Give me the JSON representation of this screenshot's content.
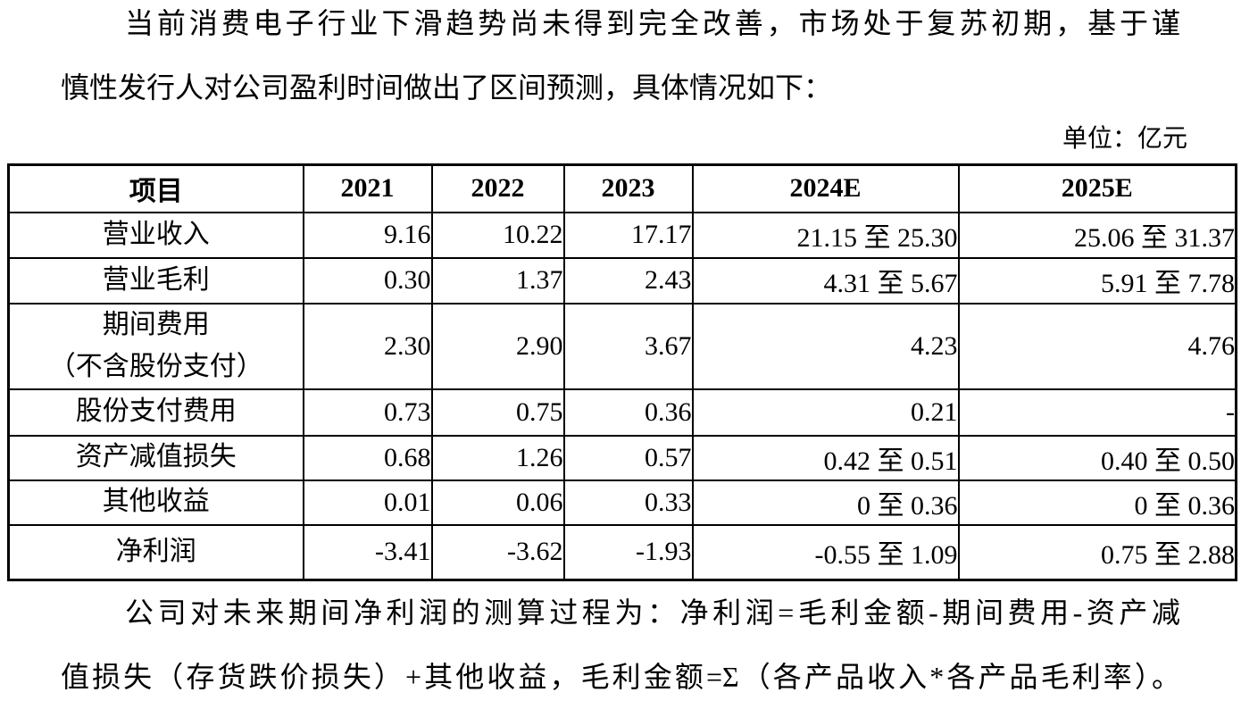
{
  "page": {
    "background": "#ffffff",
    "text_color": "#000000",
    "border_color": "#000000"
  },
  "intro": {
    "line1": "当前消费电子行业下滑趋势尚未得到完全改善，市场处于复苏初期，基于谨",
    "line2": "慎性发行人对公司盈利时间做出了区间预测，具体情况如下："
  },
  "unit_label": "单位：亿元",
  "table": {
    "headers": [
      "项目",
      "2021",
      "2022",
      "2023",
      "2024E",
      "2025E"
    ],
    "rows": [
      {
        "label": "营业收入",
        "values": [
          "9.16",
          "10.22",
          "17.17",
          "21.15 至 25.30",
          "25.06 至 31.37"
        ]
      },
      {
        "label": "营业毛利",
        "values": [
          "0.30",
          "1.37",
          "2.43",
          "4.31 至 5.67",
          "5.91 至 7.78"
        ]
      },
      {
        "label": "期间费用\n（不含股份支付）",
        "values": [
          "2.30",
          "2.90",
          "3.67",
          "4.23",
          "4.76"
        ]
      },
      {
        "label": "股份支付费用",
        "values": [
          "0.73",
          "0.75",
          "0.36",
          "0.21",
          "-"
        ]
      },
      {
        "label": "资产减值损失",
        "values": [
          "0.68",
          "1.26",
          "0.57",
          "0.42 至 0.51",
          "0.40 至 0.50"
        ]
      },
      {
        "label": "其他收益",
        "values": [
          "0.01",
          "0.06",
          "0.33",
          "0 至 0.36",
          "0 至 0.36"
        ]
      },
      {
        "label": "净利润",
        "values": [
          "-3.41",
          "-3.62",
          "-1.93",
          "-0.55 至 1.09",
          "0.75 至 2.88"
        ]
      }
    ]
  },
  "footer": {
    "line1": "公司对未来期间净利润的测算过程为：净利润=毛利金额-期间费用-资产减",
    "line2": "值损失（存货跌价损失）+其他收益，毛利金额=Σ（各产品收入*各产品毛利率）。"
  }
}
